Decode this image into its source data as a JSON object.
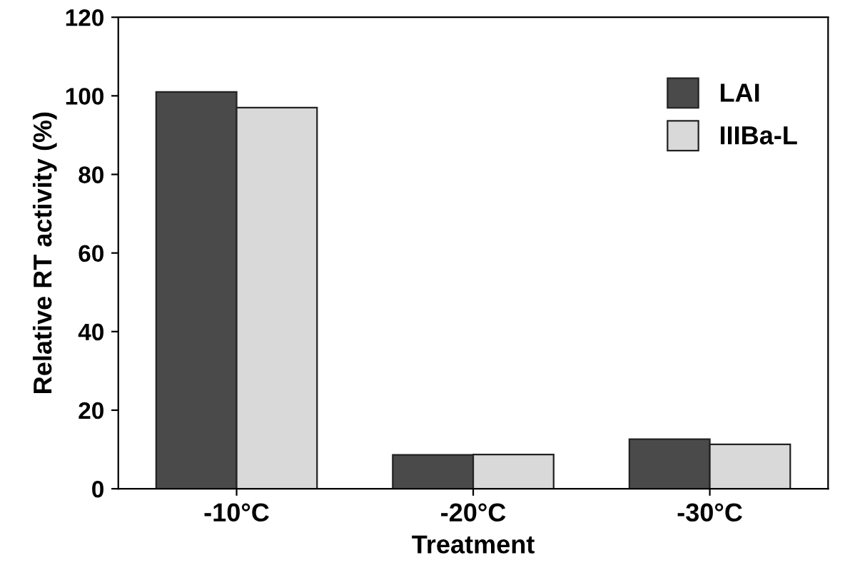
{
  "chart_data": {
    "type": "bar",
    "xlabel": "Treatment",
    "ylabel": "Relative RT activity (%)",
    "categories": [
      "-10°C",
      "-20°C",
      "-30°C"
    ],
    "series": [
      {
        "name": "LAI",
        "color": "#4a4a4a",
        "values": [
          101,
          8.6,
          12.6
        ]
      },
      {
        "name": "IIIBa-L",
        "color": "#d9d9d9",
        "values": [
          97,
          8.7,
          11.3
        ]
      }
    ],
    "ylim": [
      0,
      120
    ],
    "yticks": [
      0,
      20,
      40,
      60,
      80,
      100,
      120
    ],
    "grid": false,
    "legend": "top right"
  }
}
